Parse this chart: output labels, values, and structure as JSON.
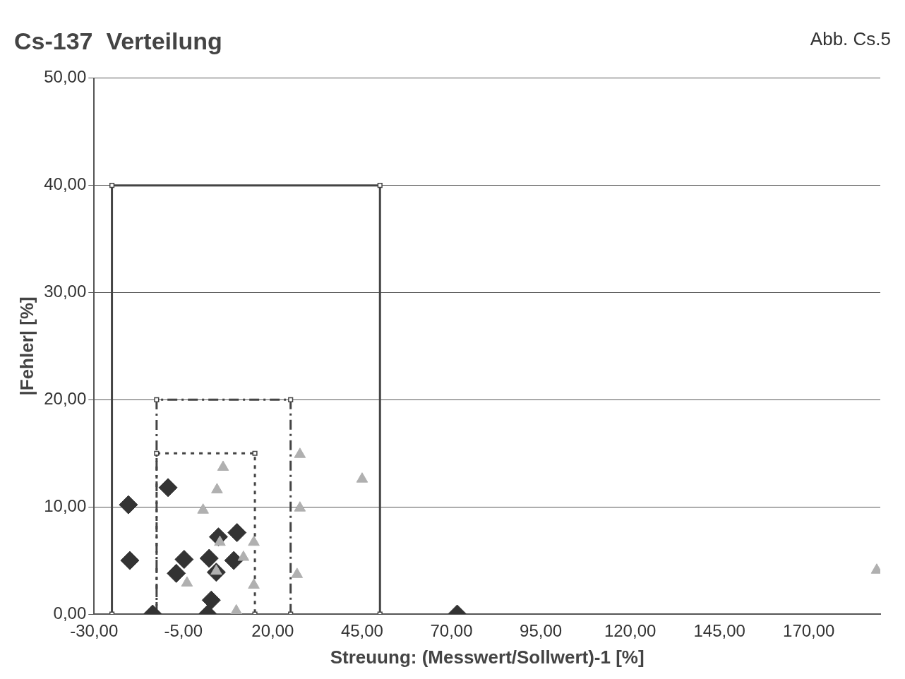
{
  "chart_data": {
    "type": "scatter",
    "title": "Cs-137  Verteilung",
    "xlabel": "Streuung: (Messwert/Sollwert)-1 [%]",
    "ylabel": "|Fehler| [%]",
    "annotations": [
      "Abb. Cs.5"
    ],
    "xlim": [
      -30,
      190
    ],
    "xticks": [
      {
        "value": -30,
        "label": "-30,00"
      },
      {
        "value": -5,
        "label": "-5,00"
      },
      {
        "value": 20,
        "label": "20,00"
      },
      {
        "value": 45,
        "label": "45,00"
      },
      {
        "value": 70,
        "label": "70,00"
      },
      {
        "value": 95,
        "label": "95,00"
      },
      {
        "value": 120,
        "label": "120,00"
      },
      {
        "value": 145,
        "label": "145,00"
      },
      {
        "value": 170,
        "label": "170,00"
      }
    ],
    "ylim": [
      0,
      50
    ],
    "yticks": [
      {
        "value": 0,
        "label": "0,00"
      },
      {
        "value": 10,
        "label": "10,00"
      },
      {
        "value": 20,
        "label": "20,00"
      },
      {
        "value": 30,
        "label": "30,00"
      },
      {
        "value": 40,
        "label": "40,00"
      },
      {
        "value": 50,
        "label": "50,00"
      }
    ],
    "grid": "y",
    "legend": false,
    "series": [
      {
        "type": "line",
        "color": "#444444",
        "marker": "square",
        "line_style": "solid",
        "x": [
          -25,
          -25,
          50,
          50
        ],
        "values": [
          0,
          40,
          40,
          0
        ]
      },
      {
        "type": "line",
        "color": "#444444",
        "marker": "square",
        "line_style": "dashed",
        "x": [
          -12.5,
          -12.5,
          25,
          25
        ],
        "values": [
          0,
          20,
          20,
          0
        ]
      },
      {
        "type": "line",
        "color": "#444444",
        "marker": "square",
        "line_style": "dotted",
        "x": [
          -12.5,
          -12.5,
          15,
          15
        ],
        "values": [
          0,
          15,
          15,
          0
        ]
      },
      {
        "type": "scatter",
        "color": "#b0b0b0",
        "marker": "triangle",
        "x": [
          6.1,
          4.4,
          0.5,
          5.2,
          11.8,
          14.7,
          -4,
          4.2,
          14.7,
          9.8,
          27.6,
          27.6,
          26.8,
          45,
          189
        ],
        "values": [
          13.7,
          11.6,
          9.7,
          6.7,
          5.3,
          6.7,
          2.9,
          4,
          2.7,
          0.3,
          14.9,
          9.9,
          3.7,
          12.6,
          4.1
        ]
      },
      {
        "type": "scatter",
        "color": "#333333",
        "marker": "diamond",
        "x": [
          -20.4,
          -20,
          -9.3,
          -13.6,
          -4.8,
          -7,
          2.2,
          4.8,
          10,
          9.1,
          4.2,
          2.8,
          1.8,
          71.6
        ],
        "values": [
          10.2,
          5,
          11.8,
          0,
          5.1,
          3.8,
          5.2,
          7.2,
          7.6,
          5,
          3.9,
          1.3,
          0,
          0
        ]
      }
    ]
  }
}
